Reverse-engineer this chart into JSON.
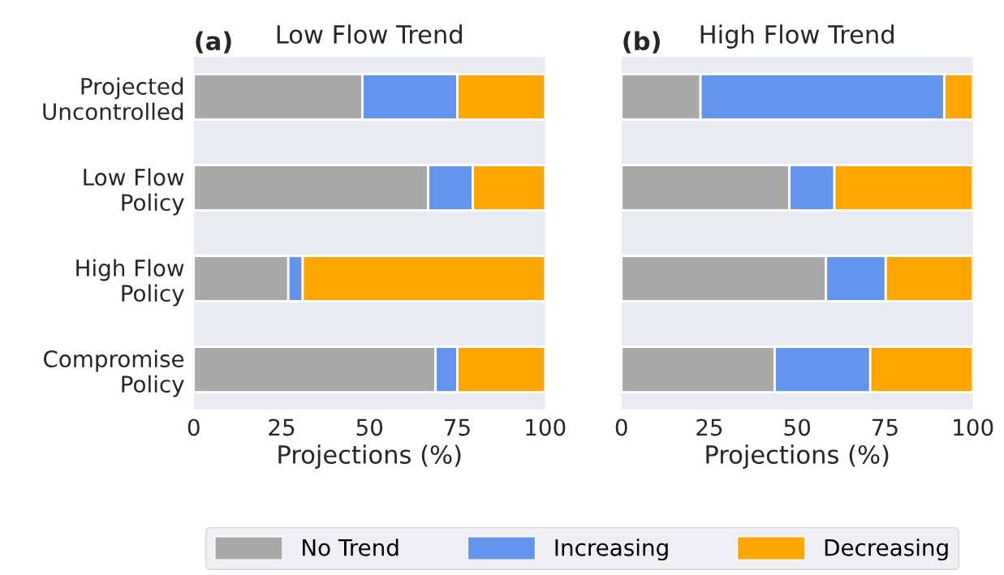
{
  "chart_data": [
    {
      "type": "bar",
      "orientation": "horizontal",
      "stacked": true,
      "title": "Low Flow Trend",
      "annotations": [
        "(a)"
      ],
      "xlabel": "Projections (%)",
      "categories": [
        "Projected\nUncontrolled",
        "Low Flow\nPolicy",
        "High Flow\nPolicy",
        "Compromise\nPolicy"
      ],
      "series": [
        {
          "name": "No Trend",
          "color": "#a9a9a9",
          "values": [
            48,
            66.7,
            26.9,
            68.8
          ]
        },
        {
          "name": "Increasing",
          "color": "#6495ed",
          "values": [
            27,
            12.7,
            4.1,
            6.2
          ]
        },
        {
          "name": "Decreasing",
          "color": "#ffa500",
          "values": [
            25,
            20.6,
            69,
            25
          ]
        }
      ],
      "xlim": [
        0,
        100
      ],
      "xticks": [
        0,
        25,
        50,
        75,
        100
      ],
      "grid": false,
      "legend": "bottom"
    },
    {
      "type": "bar",
      "orientation": "horizontal",
      "stacked": true,
      "title": "High Flow Trend",
      "annotations": [
        "(b)"
      ],
      "xlabel": "Projections (%)",
      "categories": [
        null,
        null,
        null,
        null
      ],
      "series": [
        {
          "color": "#a9a9a9",
          "values": [
            22.5,
            47.8,
            58.2,
            43.6
          ]
        },
        {
          "color": "#6495ed",
          "values": [
            69.4,
            12.8,
            17,
            27.2
          ]
        },
        {
          "color": "#ffa500",
          "values": [
            8.1,
            39.4,
            24.8,
            29.2
          ]
        }
      ],
      "xlim": [
        0,
        100
      ],
      "xticks": [
        0,
        25,
        50,
        75,
        100
      ],
      "grid": false,
      "tick_labels": "x"
    }
  ]
}
